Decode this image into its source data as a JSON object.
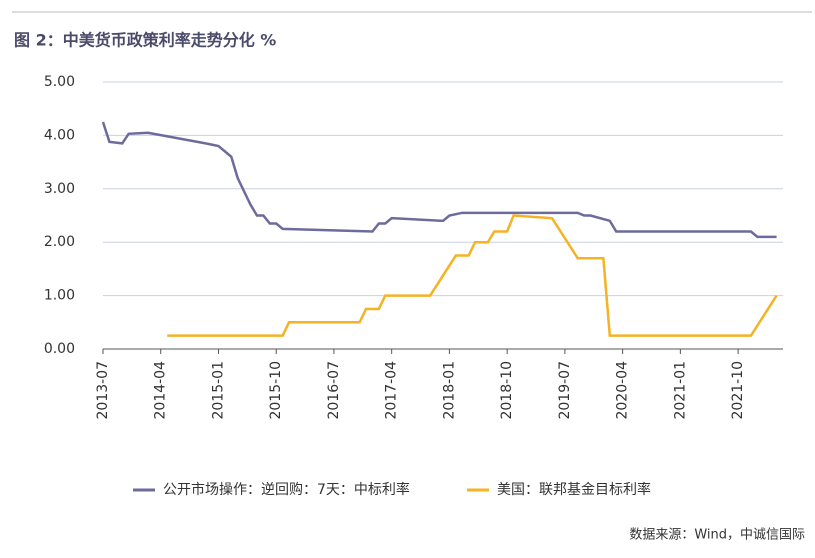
{
  "chart_data": {
    "type": "line",
    "title": "图 2：中美货币政策利率走势分化 %",
    "source": "数据来源：Wind，中诚信国际",
    "xlim": [
      "2013-07",
      "2022-05"
    ],
    "xticks": [
      "2013-07",
      "2014-04",
      "2015-01",
      "2015-10",
      "2016-07",
      "2017-04",
      "2018-01",
      "2018-10",
      "2019-07",
      "2020-04",
      "2021-01",
      "2021-10"
    ],
    "ylim": [
      0,
      5
    ],
    "yticks": [
      {
        "value": 0,
        "label": "0.00"
      },
      {
        "value": 1,
        "label": "1.00"
      },
      {
        "value": 2,
        "label": "2.00"
      },
      {
        "value": 3,
        "label": "3.00"
      },
      {
        "value": 4,
        "label": "4.00"
      },
      {
        "value": 5,
        "label": "5.00"
      }
    ],
    "grid": true,
    "legend": "bottom",
    "series": [
      {
        "name": "公开市场操作：逆回购：7天：中标利率",
        "color": "#6d6b9c",
        "x": [
          "2013-07",
          "2013-08",
          "2013-10",
          "2013-11",
          "2014-02",
          "2014-11",
          "2015-01",
          "2015-03",
          "2015-04",
          "2015-06",
          "2015-07",
          "2015-08",
          "2015-09",
          "2015-10",
          "2015-11",
          "2017-01",
          "2017-02",
          "2017-03",
          "2017-04",
          "2017-12",
          "2018-01",
          "2018-03",
          "2019-09",
          "2019-10",
          "2019-11",
          "2020-02",
          "2020-03",
          "2021-12",
          "2022-01",
          "2022-04"
        ],
        "values": [
          4.25,
          3.88,
          3.85,
          4.03,
          4.05,
          3.85,
          3.8,
          3.6,
          3.2,
          2.7,
          2.5,
          2.5,
          2.35,
          2.35,
          2.25,
          2.2,
          2.35,
          2.35,
          2.45,
          2.4,
          2.5,
          2.55,
          2.55,
          2.5,
          2.5,
          2.4,
          2.2,
          2.2,
          2.1,
          2.1
        ]
      },
      {
        "name": "美国：联邦基金目标利率",
        "color": "#f5b324",
        "x": [
          "2014-05",
          "2015-11",
          "2015-12",
          "2016-11",
          "2016-12",
          "2017-02",
          "2017-03",
          "2017-10",
          "2018-02",
          "2018-04",
          "2018-05",
          "2018-07",
          "2018-08",
          "2018-10",
          "2018-11",
          "2019-05",
          "2019-09",
          "2020-01",
          "2020-02",
          "2021-12",
          "2022-04"
        ],
        "values": [
          0.25,
          0.25,
          0.5,
          0.5,
          0.75,
          0.75,
          1.0,
          1.0,
          1.75,
          1.75,
          2.0,
          2.0,
          2.2,
          2.2,
          2.5,
          2.45,
          1.7,
          1.7,
          0.25,
          0.25,
          1.0
        ]
      }
    ]
  }
}
